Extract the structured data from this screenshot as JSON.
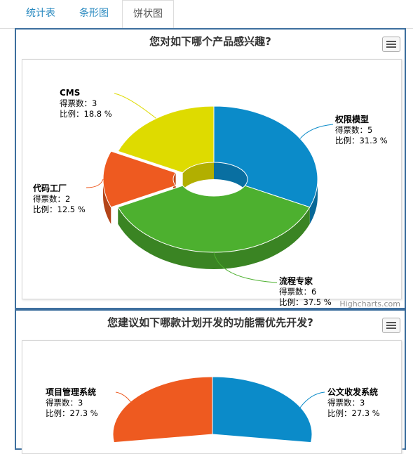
{
  "tabs": [
    {
      "label": "统计表"
    },
    {
      "label": "条形图"
    },
    {
      "label": "饼状图"
    }
  ],
  "credits": "Highcharts.com",
  "labels": {
    "votes": "得票数：",
    "ratio": "比例："
  },
  "chart_data": [
    {
      "type": "pie",
      "title": "您对如下哪个产品感兴趣?",
      "slices": [
        {
          "name": "权限模型",
          "votes": 5,
          "percent": "31.3 %",
          "color": "#0b8bc9"
        },
        {
          "name": "流程专家",
          "votes": 6,
          "percent": "37.5 %",
          "color": "#4db02f"
        },
        {
          "name": "代码工厂",
          "votes": 2,
          "percent": "12.5 %",
          "color": "#ee5a20"
        },
        {
          "name": "CMS",
          "votes": 3,
          "percent": "18.8 %",
          "color": "#dedb00"
        }
      ]
    },
    {
      "type": "pie",
      "title": "您建议如下哪款计划开发的功能需优先开发?",
      "slices": [
        {
          "name": "公文收发系统",
          "votes": 3,
          "percent": "27.3 %",
          "color": "#0b8bc9"
        },
        {
          "name": "项目管理系统",
          "votes": 3,
          "percent": "27.3 %",
          "color": "#ee5a20"
        }
      ]
    }
  ]
}
